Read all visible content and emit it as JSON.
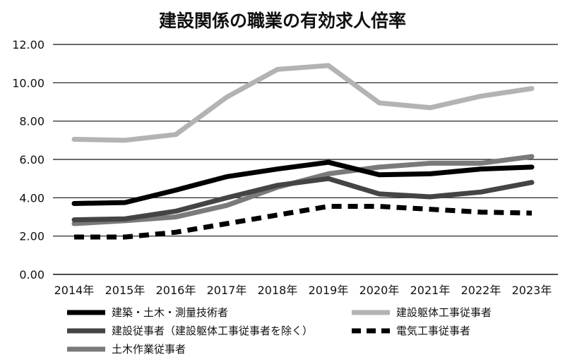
{
  "chart_data": {
    "type": "line",
    "title": "建設関係の職業の有効求人倍率",
    "xlabel": "",
    "ylabel": "",
    "categories": [
      "2014年",
      "2015年",
      "2016年",
      "2017年",
      "2018年",
      "2019年",
      "2020年",
      "2021年",
      "2022年",
      "2023年"
    ],
    "ylim": [
      0,
      12
    ],
    "yticks": [
      "0.00",
      "2.00",
      "4.00",
      "6.00",
      "8.00",
      "10.00",
      "12.00"
    ],
    "grid": true,
    "legend_position": "bottom",
    "series": [
      {
        "name": "建築・土木・測量技術者",
        "color": "#000000",
        "dash": false,
        "values": [
          3.7,
          3.75,
          4.4,
          5.1,
          5.5,
          5.85,
          5.2,
          5.25,
          5.5,
          5.6
        ]
      },
      {
        "name": "建設躯体工事従事者",
        "color": "#b3b3b3",
        "dash": false,
        "values": [
          7.05,
          7.0,
          7.3,
          9.25,
          10.7,
          10.9,
          8.95,
          8.7,
          9.3,
          9.7
        ]
      },
      {
        "name": "建設従事者（建設躯体工事従事者を除く）",
        "color": "#444444",
        "dash": false,
        "values": [
          2.85,
          2.9,
          3.3,
          4.0,
          4.65,
          5.0,
          4.2,
          4.05,
          4.3,
          4.8
        ]
      },
      {
        "name": "電気工事従事者",
        "color": "#000000",
        "dash": true,
        "values": [
          1.95,
          1.95,
          2.2,
          2.65,
          3.1,
          3.55,
          3.55,
          3.4,
          3.25,
          3.2
        ]
      },
      {
        "name": "土木作業従事者",
        "color": "#7a7a7a",
        "dash": false,
        "values": [
          2.65,
          2.8,
          3.0,
          3.6,
          4.55,
          5.25,
          5.6,
          5.8,
          5.8,
          6.15
        ]
      }
    ]
  }
}
